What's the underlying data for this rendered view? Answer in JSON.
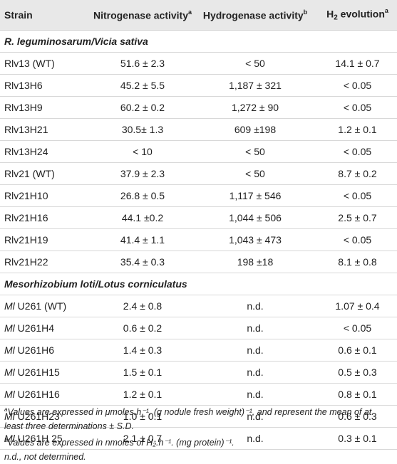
{
  "table": {
    "headers": {
      "strain": "Strain",
      "nitrogenase": "Nitrogenase activity",
      "nitrogenase_sup": "a",
      "hydrogenase": "Hydrogenase activity",
      "hydrogenase_sup": "b",
      "h2_pre": "H",
      "h2_sub": "2",
      "h2_post": " evolution",
      "h2_sup": "a"
    },
    "groups": [
      {
        "title": "R. leguminosarum/Vicia sativa",
        "rows": [
          {
            "prefix": "",
            "strain": "Rlv13 (WT)",
            "nitrogenase": "51.6 ± 2.3",
            "hydrogenase": "< 50",
            "h2": "14.1 ± 0.7"
          },
          {
            "prefix": "",
            "strain": "Rlv13H6",
            "nitrogenase": "45.2 ± 5.5",
            "hydrogenase": "1,187 ± 321",
            "h2": "< 0.05"
          },
          {
            "prefix": "",
            "strain": "Rlv13H9",
            "nitrogenase": "60.2 ± 0.2",
            "hydrogenase": "1,272 ± 90",
            "h2": "< 0.05"
          },
          {
            "prefix": "",
            "strain": "Rlv13H21",
            "nitrogenase": "30.5± 1.3",
            "hydrogenase": "609 ±198",
            "h2": "1.2 ± 0.1"
          },
          {
            "prefix": "",
            "strain": "Rlv13H24",
            "nitrogenase": "< 10",
            "hydrogenase": "< 50",
            "h2": "< 0.05"
          },
          {
            "prefix": "",
            "strain": "Rlv21 (WT)",
            "nitrogenase": "37.9 ± 2.3",
            "hydrogenase": "< 50",
            "h2": "8.7 ± 0.2"
          },
          {
            "prefix": "",
            "strain": "Rlv21H10",
            "nitrogenase": "26.8 ± 0.5",
            "hydrogenase": "1,117 ± 546",
            "h2": "< 0.05"
          },
          {
            "prefix": "",
            "strain": "Rlv21H16",
            "nitrogenase": "44.1 ±0.2",
            "hydrogenase": "1,044 ± 506",
            "h2": "2.5 ± 0.7"
          },
          {
            "prefix": "",
            "strain": "Rlv21H19",
            "nitrogenase": "41.4 ± 1.1",
            "hydrogenase": "1,043 ± 473",
            "h2": "< 0.05"
          },
          {
            "prefix": "",
            "strain": "Rlv21H22",
            "nitrogenase": "35.4 ± 0.3",
            "hydrogenase": "198 ±18",
            "h2": "8.1 ± 0.8"
          }
        ]
      },
      {
        "title": "Mesorhizobium loti/Lotus corniculatus",
        "rows": [
          {
            "prefix": "Ml",
            "strain": " U261 (WT)",
            "nitrogenase": "2.4 ± 0.8",
            "hydrogenase": "n.d.",
            "h2": "1.07 ± 0.4"
          },
          {
            "prefix": "Ml",
            "strain": " U261H4",
            "nitrogenase": "0.6 ± 0.2",
            "hydrogenase": "n.d.",
            "h2": "< 0.05"
          },
          {
            "prefix": "Ml",
            "strain": " U261H6",
            "nitrogenase": "1.4 ± 0.3",
            "hydrogenase": "n.d.",
            "h2": "0.6 ± 0.1"
          },
          {
            "prefix": "Ml",
            "strain": " U261H15",
            "nitrogenase": "1.5 ± 0.1",
            "hydrogenase": "n.d.",
            "h2": "0.5 ± 0.3"
          },
          {
            "prefix": "Ml",
            "strain": " U261H16",
            "nitrogenase": "1.2 ± 0.1",
            "hydrogenase": "n.d.",
            "h2": "0.8 ± 0.1"
          },
          {
            "prefix": "Ml",
            "strain": " U261H23",
            "nitrogenase": "1.0 ± 0.1",
            "hydrogenase": "n.d.",
            "h2": "0.6 ± 0.3"
          },
          {
            "prefix": "Ml",
            "strain": " U261H 25",
            "nitrogenase": "2.1 ± 0.7",
            "hydrogenase": "n.d.",
            "h2": "0.3 ± 0.1"
          }
        ]
      }
    ]
  },
  "footnotes": {
    "a_sup": "a",
    "a_text": "Values are expressed in μmoles.h⁻¹. (g nodule fresh weight)⁻¹, and represent the mean of at least three determinations ± S.D.",
    "b_sup": "b",
    "b_text": "Values are expressed in nmoles of H₂.h⁻¹. (mg protein)⁻¹.",
    "nd_text": "n.d., not determined."
  }
}
